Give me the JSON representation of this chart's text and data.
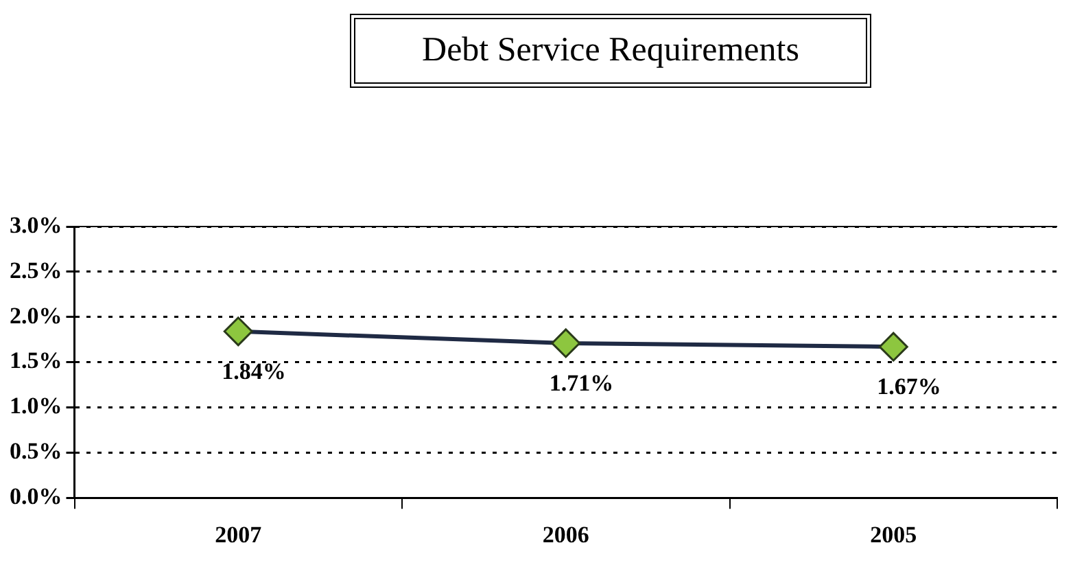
{
  "chart_data": {
    "type": "line",
    "title": "Debt Service Requirements",
    "categories": [
      "2007",
      "2006",
      "2005"
    ],
    "series": [
      {
        "color": "#1f2a44",
        "values": [
          1.84,
          1.71,
          1.67
        ],
        "value_labels": [
          "1.84%",
          "1.71%",
          "1.67%"
        ]
      }
    ],
    "ylim": [
      0,
      3
    ],
    "yticks": [
      {
        "value": 0,
        "label": "0.0%"
      },
      {
        "value": 0.5,
        "label": "0.5%"
      },
      {
        "value": 1,
        "label": "1.0%"
      },
      {
        "value": 1.5,
        "label": "1.5%"
      },
      {
        "value": 2,
        "label": "2.0%"
      },
      {
        "value": 2.5,
        "label": "2.5%"
      },
      {
        "value": 3,
        "label": "3.0%"
      }
    ],
    "grid": "y",
    "legend": false,
    "marker": "diamond",
    "line_style": "solid"
  }
}
